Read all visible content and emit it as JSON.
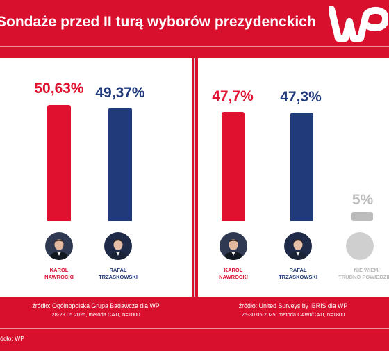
{
  "header": {
    "title": "Sondaże przed II turą wyborów prezydenckich",
    "logo": "wp-logo"
  },
  "colors": {
    "background": "#d8102e",
    "nawrocki": "#e0112f",
    "trzaskowski": "#213a7a",
    "undecided": "#bcbcbc"
  },
  "chart_data": [
    {
      "type": "bar",
      "categories": [
        "KAROL NAWROCKI",
        "RAFAŁ TRZASKOWSKI"
      ],
      "values": [
        50.63,
        49.37
      ],
      "value_labels": [
        "50,63%",
        "49,37%"
      ],
      "colors": [
        "#e0112f",
        "#213a7a"
      ],
      "ylim": [
        0,
        100
      ],
      "title": "",
      "source": "źródło: Ogólnopolska Grupa Badawcza dla WP",
      "details": "28-29.05.2025, metoda CATI, n=1000"
    },
    {
      "type": "bar",
      "categories": [
        "KAROL NAWROCKI",
        "RAFAŁ TRZASKOWSKI",
        "NIE WIEM/ TRUDNO POWIEDZIEĆ"
      ],
      "values": [
        47.7,
        47.3,
        5
      ],
      "value_labels": [
        "47,7%",
        "47,3%",
        "5%"
      ],
      "colors": [
        "#e0112f",
        "#213a7a",
        "#bcbcbc"
      ],
      "ylim": [
        0,
        100
      ],
      "title": "",
      "source": "źródło: United Surveys by IBRIS dla WP",
      "details": "25-30.05.2025, metoda CAWI/CATI, n=1800"
    }
  ],
  "candidates": {
    "nawrocki": [
      "KAROL",
      "NAWROCKI"
    ],
    "trzaskowski": [
      "RAFAŁ",
      "TRZASKOWSKI"
    ],
    "undecided": [
      "NIE WIEM/",
      "TRUDNO POWIEDZIEĆ"
    ]
  },
  "footer": {
    "source": "źródło: WP"
  }
}
